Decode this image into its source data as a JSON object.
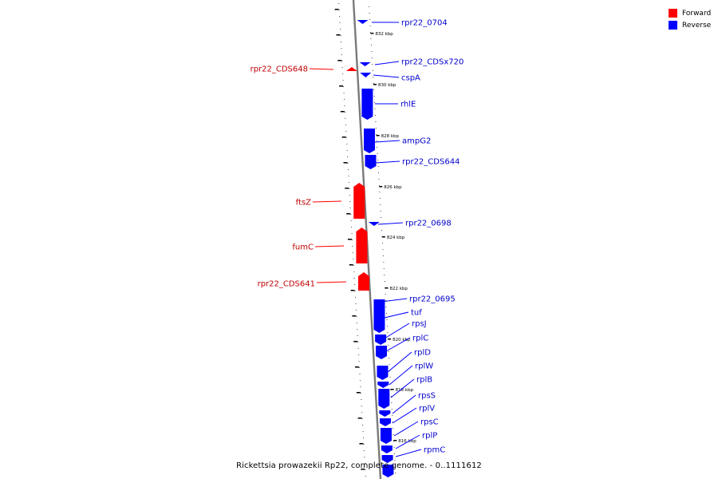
{
  "legend": {
    "forward_label": "Forward",
    "reverse_label": "Reverse",
    "forward_color": "#ff0000",
    "reverse_color": "#0000ff"
  },
  "caption": "Rickettsia prowazekii Rp22, complete genome. - 0..1111612",
  "axis": {
    "ticks": [
      "832 kbp",
      "830 kbp",
      "828 kbp",
      "826 kbp",
      "824 kbp",
      "822 kbp",
      "820 kbp",
      "818 kbp",
      "816 kbp"
    ]
  },
  "genes": {
    "forward": [
      "rpr22_CDS648",
      "ftsZ",
      "fumC",
      "rpr22_CDS641"
    ],
    "reverse": [
      "rpr22_0704",
      "rpr22_CDSx720",
      "cspA",
      "rhlE",
      "ampG2",
      "rpr22_CDS644",
      "rpr22_0698",
      "rpr22_0695",
      "tuf",
      "rpsJ",
      "rplC",
      "rplD",
      "rplW",
      "rplB",
      "rpsS",
      "rplV",
      "rpsC",
      "rplP",
      "rpmC"
    ]
  }
}
